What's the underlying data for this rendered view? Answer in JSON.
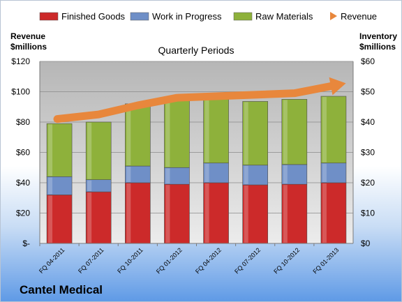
{
  "company_name": "Cantel Medical",
  "chart_data": {
    "type": "bar",
    "stacked": true,
    "title": "Quarterly Periods",
    "categories": [
      "FQ 04-2011",
      "FQ 07-2011",
      "FQ 10-2011",
      "FQ 01-2012",
      "FQ 04-2012",
      "FQ 07-2012",
      "FQ 10-2012",
      "FQ 01-2013"
    ],
    "series": [
      {
        "name": "Finished Goods",
        "color": "#cc2a2a",
        "axis": "right",
        "values": [
          16,
          17,
          20,
          19.5,
          20,
          19.3,
          19.5,
          20
        ]
      },
      {
        "name": "Work in Progress",
        "color": "#6f8fc7",
        "axis": "right",
        "values": [
          6,
          4,
          5.5,
          5.5,
          6.5,
          6.5,
          6.5,
          6.5
        ]
      },
      {
        "name": "Raw Materials",
        "color": "#8eb13b",
        "axis": "right",
        "values": [
          17.5,
          19,
          20.5,
          22,
          21,
          21,
          21.5,
          22
        ]
      }
    ],
    "revenue": {
      "name": "Revenue",
      "color": "#e8873c",
      "axis": "left",
      "values": [
        82,
        85,
        91,
        96,
        97,
        98,
        99,
        104
      ]
    },
    "left_axis": {
      "label_lines": [
        "Revenue",
        "$millions"
      ],
      "ylim": [
        0,
        120
      ],
      "ticks": [
        "$-",
        "$20",
        "$40",
        "$60",
        "$80",
        "$100",
        "$120"
      ]
    },
    "right_axis": {
      "label_lines": [
        "Inventory",
        "$millions"
      ],
      "ylim": [
        0,
        60
      ],
      "ticks": [
        "$0",
        "$10",
        "$20",
        "$30",
        "$40",
        "$50",
        "$60"
      ]
    },
    "legend_position": "top",
    "grid": true
  }
}
